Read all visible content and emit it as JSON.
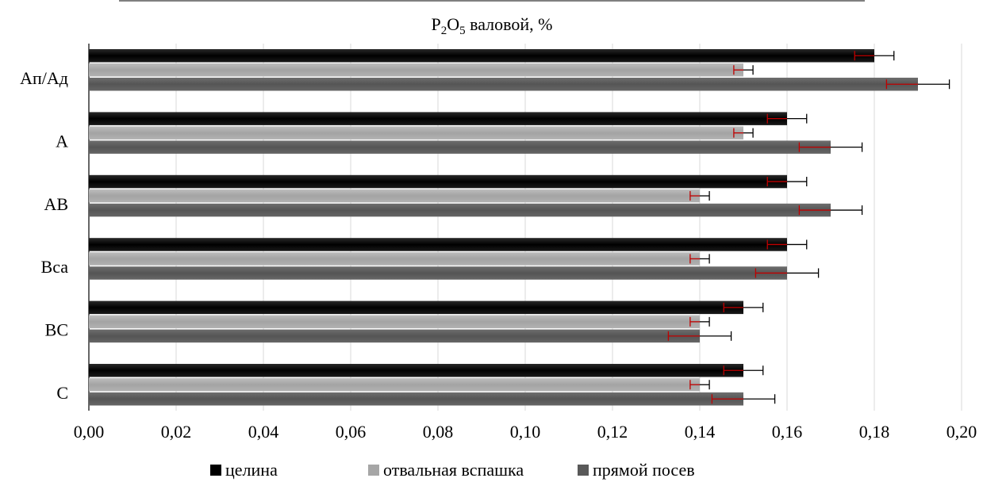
{
  "chart_data": {
    "type": "bar",
    "orientation": "horizontal",
    "title": "P2O5 валовой, %",
    "title_parts": {
      "a": "P",
      "sub1": "2",
      "b": "O",
      "sub2": "5",
      "rest": " валовой, %"
    },
    "categories": [
      "Ап/Ад",
      "А",
      "АВ",
      "Вса",
      "ВС",
      "С"
    ],
    "series": [
      {
        "name": "целина",
        "color": "#000000",
        "values": [
          0.18,
          0.16,
          0.16,
          0.16,
          0.15,
          0.15
        ],
        "errors": [
          0.0045,
          0.0045,
          0.0045,
          0.0045,
          0.0045,
          0.0045
        ]
      },
      {
        "name": "отвальная вспашка",
        "color": "#a6a6a6",
        "values": [
          0.15,
          0.15,
          0.14,
          0.14,
          0.14,
          0.14
        ],
        "errors": [
          0.0022,
          0.0022,
          0.0022,
          0.0022,
          0.0022,
          0.0022
        ]
      },
      {
        "name": "прямой посев",
        "color": "#595959",
        "values": [
          0.19,
          0.17,
          0.17,
          0.16,
          0.14,
          0.15
        ],
        "errors": [
          0.0072,
          0.0072,
          0.0072,
          0.0072,
          0.0072,
          0.0072
        ]
      }
    ],
    "xlim": [
      0,
      0.2
    ],
    "xticks": [
      0,
      0.02,
      0.04,
      0.06,
      0.08,
      0.1,
      0.12,
      0.14,
      0.16,
      0.18,
      0.2
    ],
    "xtick_labels": [
      "0,00",
      "0,02",
      "0,04",
      "0,06",
      "0,08",
      "0,10",
      "0,12",
      "0,14",
      "0,16",
      "0,18",
      "0,20"
    ],
    "grid": true,
    "legend": "bottom",
    "error_bar_color": "#c00000",
    "error_cap_color": "#000000"
  }
}
